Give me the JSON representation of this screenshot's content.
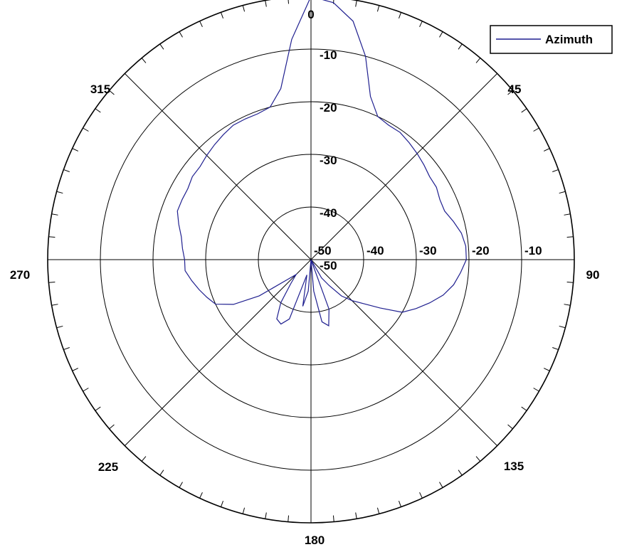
{
  "chart_data": {
    "type": "polar-line",
    "title": "",
    "angle_labels": [
      "0",
      "45",
      "90",
      "135",
      "180",
      "225",
      "270",
      "315"
    ],
    "radial_tick_labels": [
      "-50",
      "-40",
      "-30",
      "-20",
      "-10"
    ],
    "radial_range": [
      -50,
      0
    ],
    "angle_unit": "degrees",
    "direction": "clockwise",
    "zero_at": "top",
    "grid": true,
    "legend": {
      "placement": "top-right",
      "entries": [
        "Azimuth"
      ]
    },
    "series": [
      {
        "name": "Azimuth",
        "color": "#1f1f8f",
        "angles": [
          0,
          5,
          10,
          15,
          20,
          25,
          30,
          35,
          40,
          45,
          50,
          55,
          60,
          65,
          70,
          75,
          80,
          85,
          90,
          95,
          100,
          105,
          110,
          115,
          120,
          125,
          130,
          135,
          140,
          145,
          150,
          155,
          160,
          165,
          170,
          175,
          180,
          185,
          190,
          195,
          200,
          205,
          210,
          215,
          220,
          225,
          230,
          235,
          240,
          245,
          250,
          255,
          260,
          265,
          270,
          275,
          280,
          285,
          290,
          295,
          300,
          305,
          310,
          315,
          320,
          325,
          330,
          335,
          340,
          345,
          350,
          355,
          360
        ],
        "values": [
          0,
          -1,
          -4,
          -10,
          -17,
          -20,
          -20.5,
          -20.5,
          -21,
          -21.5,
          -22,
          -22.5,
          -22.5,
          -23,
          -23,
          -22,
          -21,
          -20.5,
          -20.5,
          -21.5,
          -22.5,
          -24,
          -26,
          -28,
          -30,
          -34,
          -37,
          -39,
          -41,
          -44,
          -46,
          -50,
          -40,
          -37,
          -38,
          -44,
          -50,
          -44,
          -41,
          -47,
          -38,
          -36.5,
          -37,
          -40,
          -44,
          -46,
          -44,
          -38,
          -33,
          -30,
          -29,
          -28,
          -27,
          -26,
          -26,
          -25.5,
          -25,
          -24,
          -23,
          -23,
          -23,
          -22.5,
          -22.5,
          -22,
          -21.5,
          -21,
          -20.5,
          -20.5,
          -20.5,
          -20,
          -17,
          -8,
          0
        ]
      }
    ]
  }
}
